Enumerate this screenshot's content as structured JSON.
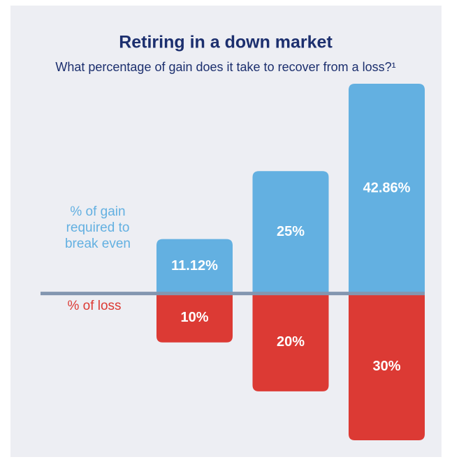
{
  "chart_data": {
    "type": "bar",
    "title": "Retiring in a down market",
    "subtitle": "What percentage of gain does it take to recover from a loss?¹",
    "series": [
      {
        "name": "% of gain required to break even",
        "color": "#63b0e1",
        "values": [
          11.12,
          25,
          42.86
        ],
        "value_labels": [
          "11.12%",
          "25%",
          "42.86%"
        ]
      },
      {
        "name": "% of loss",
        "color": "#dc3a34",
        "values": [
          -10,
          -20,
          -30
        ],
        "value_labels": [
          "10%",
          "20%",
          "30%"
        ]
      }
    ],
    "ylim": [
      -32,
      44
    ],
    "baseline_color": "#8396b0"
  }
}
